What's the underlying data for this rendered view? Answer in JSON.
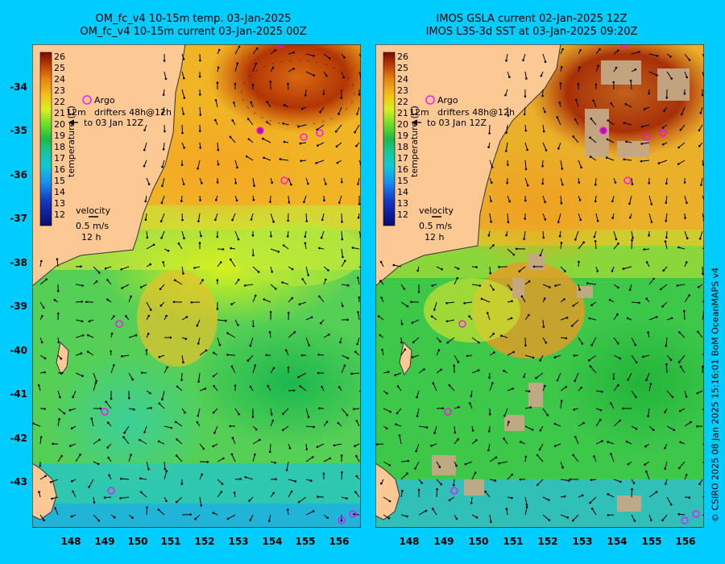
{
  "left_panel": {
    "title_line1": "OM_fc_v4  10-15m temp. 03-Jan-2025",
    "title_line2": "OM_fc_v4  10-15m current 03-Jan-2025 00Z",
    "colorbar": {
      "ticks": [
        "26",
        "25",
        "24",
        "23",
        "22",
        "21",
        "20",
        "19",
        "18",
        "17",
        "16",
        "15",
        "14",
        "13",
        "12"
      ],
      "label": "temperature (C)"
    },
    "legend": {
      "argo": "Argo",
      "drifters_prefix": "12m",
      "drifters": "drifters 48h@12h",
      "drifters_line2": "to 03 Jan 12Z"
    },
    "velocity": {
      "title": "velocity",
      "value": "0.5 m/s",
      "time": "12 h"
    }
  },
  "right_panel": {
    "title_line1": "IMOS GSLA current 02-Jan-2025 12Z",
    "title_line2": "IMOS L3S-3d SST at 03-Jan-2025 09:20Z",
    "colorbar": {
      "ticks": [
        "26",
        "25",
        "24",
        "23",
        "22",
        "21",
        "20",
        "19",
        "18",
        "17",
        "16",
        "15",
        "14",
        "13",
        "12"
      ],
      "label": "temperature (C)"
    },
    "legend": {
      "argo": "Argo",
      "drifters_prefix": "12m",
      "drifters": "drifters 48h@12h",
      "drifters_line2": "to 03 Jan 12Z"
    },
    "velocity": {
      "title": "velocity",
      "value": "0.5 m/s",
      "time": "12 h"
    }
  },
  "axes": {
    "x_ticks": [
      "148",
      "149",
      "150",
      "151",
      "152",
      "153",
      "154",
      "155",
      "156"
    ],
    "y_ticks": [
      "-34",
      "-35",
      "-36",
      "-37",
      "-38",
      "-39",
      "-40",
      "-41",
      "-42",
      "-43"
    ]
  },
  "credit": "© CSIRO 2025   08 Jan 2025 15:16:01 BoM OceanMAPS v4",
  "colors": {
    "background": "#00ccff",
    "land": "#fcc995",
    "argo_marker": "#ff00ff",
    "drifter_track": "#ff2222"
  }
}
